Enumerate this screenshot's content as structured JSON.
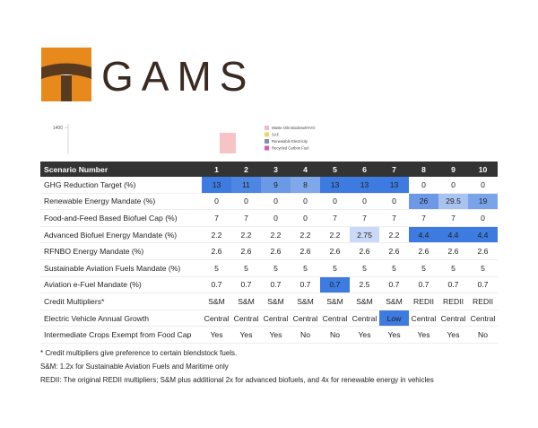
{
  "logo": {
    "text": "GAMS"
  },
  "chart_fragment": {
    "ytick": "1400",
    "legend": [
      {
        "name": "Waste Oils Biodiesel/HVO",
        "color": "#f4b8c0"
      },
      {
        "name": "SAF",
        "color": "#f2d36b"
      },
      {
        "name": "Renewable Electricity",
        "color": "#7d8fb3"
      },
      {
        "name": "Recycled Carbon Fuel",
        "color": "#d45fb0"
      }
    ]
  },
  "table": {
    "header": [
      "Scenario Number",
      "1",
      "2",
      "3",
      "4",
      "5",
      "6",
      "7",
      "8",
      "9",
      "10"
    ],
    "rows": [
      {
        "cells": [
          "GHG Reduction Target (%)",
          "13",
          "11",
          "9",
          "8",
          "13",
          "13",
          "13",
          "0",
          "0",
          "0"
        ],
        "colors": [
          null,
          "#3d7be0",
          "#4d86e3",
          "#6a9ae6",
          "#7ea8ea",
          "#3d7be0",
          "#3d7be0",
          "#3d7be0",
          null,
          null,
          null
        ]
      },
      {
        "cells": [
          "Renewable Energy Mandate (%)",
          "0",
          "0",
          "0",
          "0",
          "0",
          "0",
          "0",
          "26",
          "29.5",
          "19"
        ],
        "colors": [
          null,
          null,
          null,
          null,
          null,
          null,
          null,
          null,
          "#6c98e6",
          "#a9c3f1",
          "#7aa4ea"
        ]
      },
      {
        "cells": [
          "Food-and-Feed Based Biofuel Cap (%)",
          "7",
          "7",
          "0",
          "0",
          "7",
          "7",
          "7",
          "7",
          "7",
          "0"
        ],
        "colors": [
          null,
          null,
          null,
          null,
          null,
          null,
          null,
          null,
          null,
          null,
          null
        ]
      },
      {
        "cells": [
          "Advanced Biofuel Energy Mandate (%)",
          "2.2",
          "2.2",
          "2.2",
          "2.2",
          "2.2",
          "2.75",
          "2.2",
          "4.4",
          "4.4",
          "4.4"
        ],
        "colors": [
          null,
          null,
          null,
          null,
          null,
          null,
          "#c9d9f7",
          null,
          "#3d7be0",
          "#3d7be0",
          "#3d7be0"
        ]
      },
      {
        "cells": [
          "RFNBO Energy Mandate (%)",
          "2.6",
          "2.6",
          "2.6",
          "2.6",
          "2.6",
          "2.6",
          "2.6",
          "2.6",
          "2.6",
          "2.6"
        ],
        "colors": [
          null,
          null,
          null,
          null,
          null,
          null,
          null,
          null,
          null,
          null,
          null
        ]
      },
      {
        "cells": [
          "Sustainable Aviation Fuels Mandate (%)",
          "5",
          "5",
          "5",
          "5",
          "5",
          "5",
          "5",
          "5",
          "5",
          "5"
        ],
        "colors": [
          null,
          null,
          null,
          null,
          null,
          null,
          null,
          null,
          null,
          null,
          null
        ]
      },
      {
        "cells": [
          "Aviation e-Fuel Mandate (%)",
          "0.7",
          "0.7",
          "0.7",
          "0.7",
          "0.7",
          "2.5",
          "0.7",
          "0.7",
          "0.7",
          "0.7"
        ],
        "colors": [
          null,
          null,
          null,
          null,
          null,
          "#3d7be0",
          null,
          null,
          null,
          null,
          null
        ]
      },
      {
        "cells": [
          "Credit Multipliers*",
          "S&M",
          "S&M",
          "S&M",
          "S&M",
          "S&M",
          "S&M",
          "S&M",
          "REDII",
          "REDII",
          "REDII"
        ],
        "colors": [
          null,
          null,
          null,
          null,
          null,
          null,
          null,
          null,
          null,
          null,
          null
        ]
      },
      {
        "cells": [
          "Electric Vehicle Annual Growth",
          "Central",
          "Central",
          "Central",
          "Central",
          "Central",
          "Central",
          "Low",
          "Central",
          "Central",
          "Central"
        ],
        "colors": [
          null,
          null,
          null,
          null,
          null,
          null,
          null,
          "#3d7be0",
          null,
          null,
          null
        ]
      },
      {
        "cells": [
          "Intermediate Crops Exempt from Food Cap",
          "Yes",
          "Yes",
          "Yes",
          "No",
          "No",
          "Yes",
          "Yes",
          "Yes",
          "Yes",
          "No"
        ],
        "colors": [
          null,
          null,
          null,
          null,
          null,
          null,
          null,
          null,
          null,
          null,
          null
        ]
      }
    ]
  },
  "footnotes": [
    "* Credit multipliers give preference to certain blendstock fuels.",
    "S&M: 1.2x for Sustainable Aviation Fuels and Maritime only",
    "REDII: The original REDII multipliers; S&M plus additional 2x for advanced biofuels, and 4x for renewable energy in vehicles"
  ]
}
